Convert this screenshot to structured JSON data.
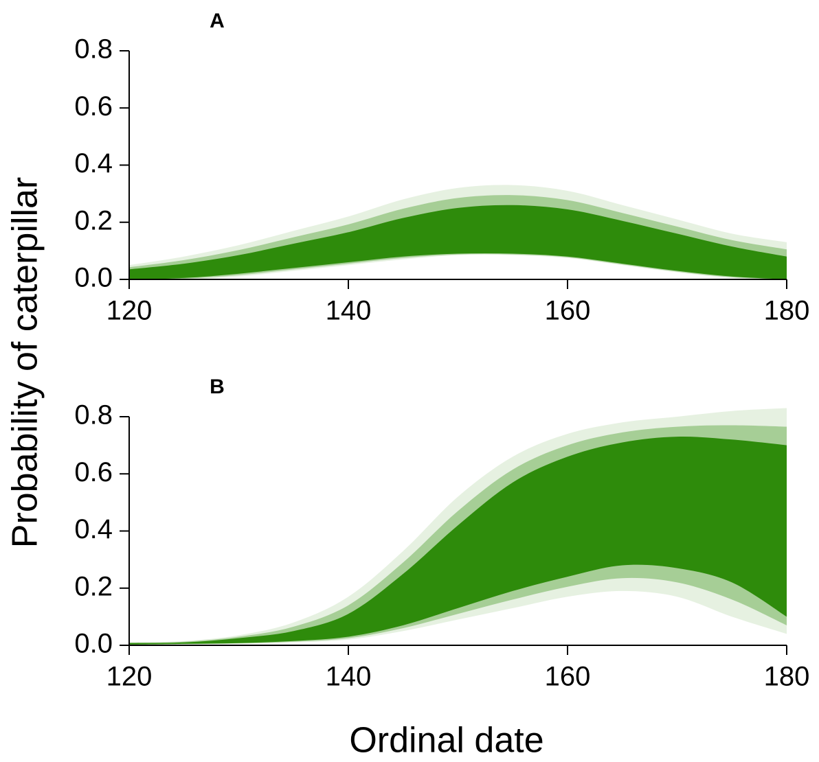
{
  "chart_data": {
    "type": "line",
    "shared_ylabel": "Probability of caterpillar",
    "shared_xlabel": "Ordinal date",
    "colors": {
      "series": "#2e8b0b",
      "axis": "#000000"
    },
    "panels": [
      {
        "label": "A",
        "xlim": [
          120,
          180
        ],
        "ylim": [
          0,
          0.8
        ],
        "xticks": [
          "120",
          "140",
          "160",
          "180"
        ],
        "yticks": [
          "0.0",
          "0.2",
          "0.4",
          "0.6",
          "0.8"
        ],
        "grid": false,
        "note": "Many overlaid posterior draw curves forming a band; values given as band envelope",
        "x": [
          120,
          125,
          130,
          135,
          140,
          145,
          150,
          155,
          160,
          165,
          170,
          175,
          180
        ],
        "band_outer_upper": [
          0.05,
          0.08,
          0.12,
          0.17,
          0.22,
          0.28,
          0.32,
          0.33,
          0.31,
          0.26,
          0.21,
          0.16,
          0.13
        ],
        "band_core_upper": [
          0.035,
          0.055,
          0.085,
          0.125,
          0.165,
          0.215,
          0.25,
          0.26,
          0.245,
          0.205,
          0.16,
          0.115,
          0.08
        ],
        "band_core_lower": [
          0.0,
          0.005,
          0.02,
          0.04,
          0.06,
          0.08,
          0.09,
          0.09,
          0.08,
          0.055,
          0.03,
          0.01,
          0.0
        ],
        "band_outer_lower": [
          0.0,
          0.0,
          0.01,
          0.03,
          0.05,
          0.07,
          0.085,
          0.085,
          0.075,
          0.05,
          0.025,
          0.005,
          0.0
        ]
      },
      {
        "label": "B",
        "xlim": [
          120,
          180
        ],
        "ylim": [
          0,
          0.8
        ],
        "xticks": [
          "120",
          "140",
          "160",
          "180"
        ],
        "yticks": [
          "0.0",
          "0.2",
          "0.4",
          "0.6",
          "0.8"
        ],
        "grid": false,
        "note": "Many overlaid posterior draw curves forming a band; values given as band envelope",
        "x": [
          120,
          125,
          130,
          135,
          140,
          145,
          150,
          155,
          160,
          165,
          170,
          175,
          180
        ],
        "band_outer_upper": [
          0.01,
          0.015,
          0.035,
          0.08,
          0.17,
          0.33,
          0.52,
          0.66,
          0.74,
          0.78,
          0.8,
          0.82,
          0.83
        ],
        "band_core_upper": [
          0.008,
          0.01,
          0.025,
          0.05,
          0.11,
          0.25,
          0.42,
          0.57,
          0.66,
          0.71,
          0.73,
          0.72,
          0.7
        ],
        "band_core_lower": [
          0.003,
          0.005,
          0.008,
          0.015,
          0.03,
          0.07,
          0.13,
          0.19,
          0.24,
          0.28,
          0.27,
          0.22,
          0.1
        ],
        "band_outer_lower": [
          0.002,
          0.003,
          0.005,
          0.01,
          0.02,
          0.05,
          0.09,
          0.13,
          0.17,
          0.19,
          0.17,
          0.1,
          0.04
        ]
      }
    ]
  }
}
